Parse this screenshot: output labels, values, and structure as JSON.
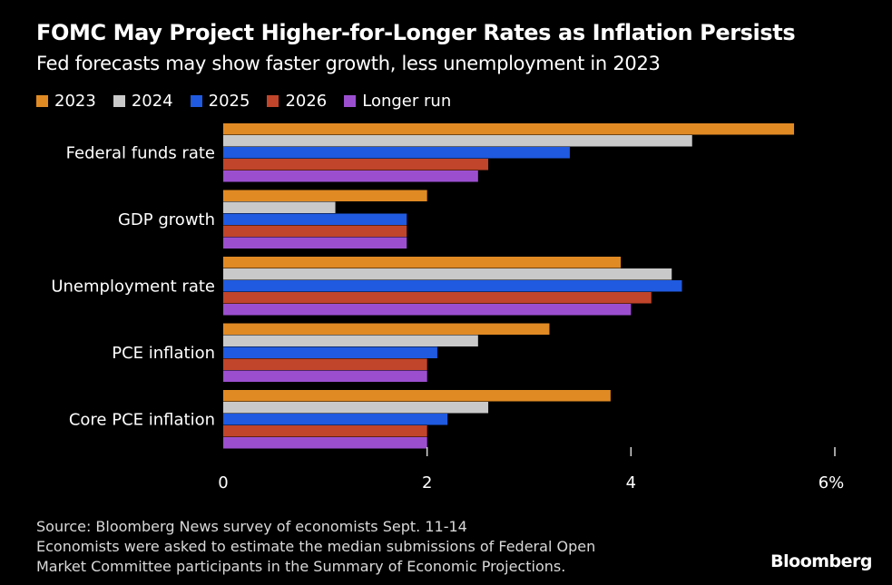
{
  "header": {
    "title": "FOMC May Project Higher-for-Longer Rates as Inflation Persists",
    "subtitle": "Fed forecasts may show faster growth, less unemployment in 2023"
  },
  "chart_data": {
    "type": "bar",
    "orientation": "horizontal",
    "categories": [
      "Federal funds rate",
      "GDP growth",
      "Unemployment rate",
      "PCE inflation",
      "Core PCE inflation"
    ],
    "series": [
      {
        "name": "2023",
        "color": "#e08a24",
        "values": [
          5.6,
          2.0,
          3.9,
          3.2,
          3.8
        ]
      },
      {
        "name": "2024",
        "color": "#c9c9c9",
        "values": [
          4.6,
          1.1,
          4.4,
          2.5,
          2.6
        ]
      },
      {
        "name": "2025",
        "color": "#1f5ae0",
        "values": [
          3.4,
          1.8,
          4.5,
          2.1,
          2.2
        ]
      },
      {
        "name": "2026",
        "color": "#c0452a",
        "values": [
          2.6,
          1.8,
          4.2,
          2.0,
          2.0
        ]
      },
      {
        "name": "Longer run",
        "color": "#9b4fcf",
        "values": [
          2.5,
          1.8,
          4.0,
          2.0,
          2.0
        ]
      }
    ],
    "xlim": [
      0,
      6
    ],
    "xticks": [
      0,
      2,
      4,
      6
    ],
    "xtick_labels": [
      "0",
      "2",
      "4",
      "6%"
    ],
    "legend_position": "top-left",
    "grid": false
  },
  "footer": {
    "source_lines": [
      "Source: Bloomberg News survey of economists Sept. 11-14",
      "Economists were asked to estimate the median submissions of Federal Open",
      "Market Committee participants in the Summary of Economic Projections."
    ],
    "logo": "Bloomberg"
  }
}
